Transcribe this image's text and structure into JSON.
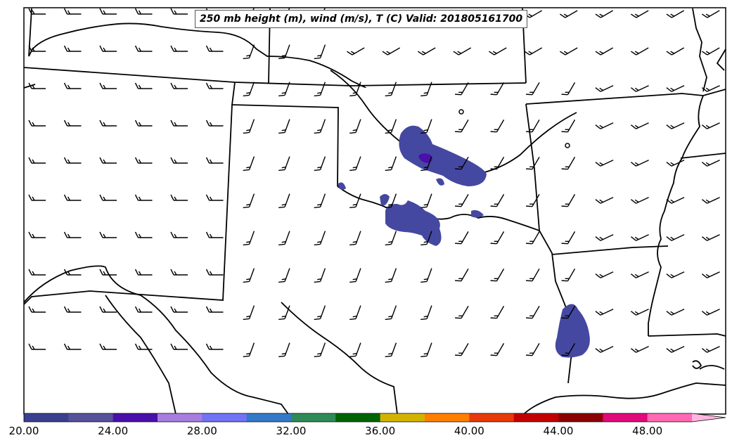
{
  "title": "250 mb height (m), wind (m/s), T (C) Valid: 201805161700",
  "colorbar": {
    "colors": [
      "#3b3f8f",
      "#56529a",
      "#4b0faa",
      "#a77ee0",
      "#7373f5",
      "#3479c8",
      "#2e8b57",
      "#006400",
      "#d4b300",
      "#ff7f00",
      "#e83a0a",
      "#c20000",
      "#8b0000",
      "#e00a7a",
      "#ff69b4",
      "#ffb6e1"
    ],
    "tick_labels": [
      "20.00",
      "24.00",
      "28.00",
      "32.00",
      "36.00",
      "40.00",
      "44.00",
      "48.00"
    ],
    "min": 20,
    "max": 52,
    "step": 2
  },
  "wind_barbs": {
    "description_units": "knots-style barbs, flow from west/southwest"
  }
}
